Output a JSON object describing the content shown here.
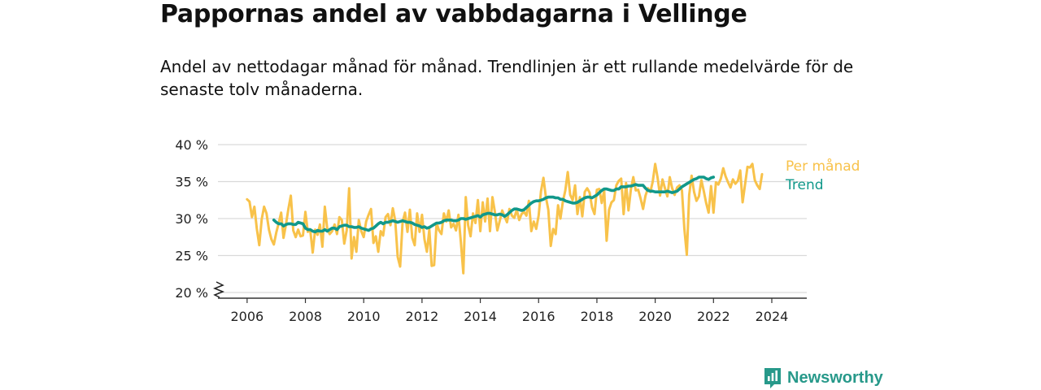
{
  "title": "Pappornas andel av vabbdagarna i Vellinge",
  "subtitle": "Andel av nettodagar månad för månad. Trendlinjen är ett rullande medelvärde för de senaste tolv månaderna.",
  "brand": {
    "name": "Newsworthy",
    "color": "#27998a",
    "icon": "newsworthy-logo-icon"
  },
  "chart_data": {
    "type": "line",
    "title": "Pappornas andel av vabbdagarna i Vellinge",
    "ylabel": "",
    "xlabel": "",
    "ylim": [
      20,
      40
    ],
    "xlim": [
      2005.0,
      2025.2
    ],
    "y_ticks": [
      20,
      25,
      30,
      35,
      40
    ],
    "y_tick_labels": [
      "20 %",
      "25 %",
      "30 %",
      "35 %",
      "40 %"
    ],
    "x_ticks": [
      2006,
      2008,
      2010,
      2012,
      2014,
      2016,
      2018,
      2020,
      2022,
      2024
    ],
    "x_tick_labels": [
      "2006",
      "2008",
      "2010",
      "2012",
      "2014",
      "2016",
      "2018",
      "2020",
      "2022",
      "2024"
    ],
    "axis_break": true,
    "grid": true,
    "legend": "direct labels right",
    "series": [
      {
        "name": "Per månad",
        "color": "#f8c24a",
        "start": 2006.0,
        "step_months": 1,
        "values": [
          32.6,
          32.3,
          30.2,
          31.6,
          28.6,
          26.4,
          29.9,
          31.6,
          30.7,
          28.5,
          27.2,
          26.5,
          28.1,
          29.4,
          30.8,
          27.4,
          29.2,
          31.3,
          33.1,
          28.4,
          27.5,
          28.5,
          27.6,
          27.7,
          30.9,
          28.2,
          28.4,
          25.4,
          28.5,
          27.8,
          29.2,
          26.2,
          31.6,
          28.6,
          27.9,
          28.3,
          29.2,
          27.9,
          30.2,
          29.8,
          26.6,
          28.4,
          34.1,
          24.6,
          27.5,
          25.5,
          29.8,
          28.3,
          27.5,
          29.6,
          30.5,
          31.3,
          26.7,
          27.6,
          25.5,
          28.3,
          27.7,
          30.2,
          30.6,
          29.1,
          31.4,
          29.7,
          24.8,
          23.5,
          29.5,
          30.8,
          28.2,
          31.2,
          27.4,
          26.4,
          30.7,
          28.2,
          30.5,
          27.2,
          25.5,
          28.5,
          23.6,
          23.7,
          29.4,
          28.4,
          27.9,
          30.7,
          29.6,
          31.1,
          28.8,
          29.3,
          28.4,
          30.5,
          26.8,
          22.6,
          32.9,
          29.1,
          27.6,
          30.7,
          29.4,
          32.5,
          28.3,
          32.2,
          29.6,
          32.7,
          28.3,
          32.9,
          30.9,
          28.4,
          29.7,
          31.1,
          30.3,
          29.5,
          31.3,
          30.4,
          30.1,
          31.2,
          29.8,
          30.6,
          30.9,
          30.4,
          32.4,
          28.3,
          29.6,
          28.6,
          30.4,
          33.7,
          35.5,
          32.9,
          31.2,
          26.3,
          28.6,
          27.9,
          31.8,
          30.0,
          32.3,
          33.8,
          36.3,
          33.2,
          32.5,
          34.5,
          30.6,
          32.9,
          30.3,
          33.6,
          34.1,
          33.5,
          31.5,
          30.6,
          33.9,
          34.0,
          32.1,
          33.8,
          27.0,
          31.2,
          32.2,
          32.5,
          34.5,
          35.1,
          35.4,
          30.6,
          34.8,
          31.1,
          34.0,
          35.6,
          33.8,
          33.9,
          32.7,
          31.3,
          33.1,
          34.1,
          33.6,
          35.0,
          37.4,
          35.5,
          33.1,
          35.3,
          34.1,
          33.0,
          35.6,
          34.1,
          33.2,
          34.2,
          34.5,
          33.8,
          28.6,
          25.1,
          33.2,
          35.8,
          33.6,
          32.4,
          33.0,
          35.2,
          33.7,
          32.1,
          30.8,
          34.4,
          30.8,
          34.9,
          34.6,
          35.4,
          36.8,
          35.7,
          34.9,
          34.2,
          35.3,
          34.7,
          35.1,
          36.5,
          32.2,
          34.6,
          37.0,
          36.9,
          37.4,
          35.2,
          34.5,
          34.0,
          36.0
        ]
      },
      {
        "name": "Trend",
        "color": "#11988a",
        "start": 2006.917,
        "step_months": 1,
        "values": [
          29.8,
          29.5,
          29.3,
          29.3,
          29.0,
          29.2,
          29.3,
          29.3,
          29.2,
          29.2,
          29.5,
          29.4,
          29.3,
          28.7,
          28.5,
          28.5,
          28.3,
          28.2,
          28.4,
          28.3,
          28.3,
          28.5,
          28.3,
          28.5,
          28.7,
          28.7,
          28.5,
          28.9,
          29.0,
          29.1,
          29.1,
          28.9,
          28.9,
          28.8,
          28.8,
          28.9,
          28.7,
          28.6,
          28.5,
          28.4,
          28.6,
          28.7,
          29.0,
          29.3,
          29.5,
          29.3,
          29.5,
          29.5,
          29.6,
          29.7,
          29.6,
          29.5,
          29.6,
          29.7,
          29.6,
          29.5,
          29.5,
          29.4,
          29.2,
          29.1,
          29.0,
          28.8,
          28.9,
          28.7,
          28.8,
          29.0,
          29.2,
          29.4,
          29.4,
          29.5,
          29.7,
          29.8,
          29.8,
          29.8,
          29.7,
          29.7,
          29.8,
          30.0,
          30.0,
          29.9,
          30.0,
          30.1,
          30.2,
          30.3,
          30.4,
          30.2,
          30.5,
          30.6,
          30.7,
          30.7,
          30.6,
          30.5,
          30.5,
          30.6,
          30.5,
          30.3,
          30.5,
          30.8,
          31.1,
          31.3,
          31.3,
          31.2,
          31.1,
          31.2,
          31.5,
          31.8,
          32.1,
          32.3,
          32.4,
          32.4,
          32.5,
          32.6,
          32.8,
          32.9,
          32.9,
          32.9,
          32.8,
          32.8,
          32.6,
          32.6,
          32.4,
          32.3,
          32.2,
          32.1,
          32.1,
          32.2,
          32.4,
          32.6,
          32.8,
          32.9,
          32.9,
          32.8,
          33.0,
          33.2,
          33.5,
          33.8,
          34.0,
          34.0,
          33.9,
          33.8,
          33.8,
          34.0,
          34.0,
          34.3,
          34.3,
          34.3,
          34.4,
          34.4,
          34.5,
          34.6,
          34.5,
          34.5,
          34.5,
          34.1,
          33.8,
          33.7,
          33.7,
          33.6,
          33.6,
          33.6,
          33.6,
          33.6,
          33.7,
          33.6,
          33.5,
          33.6,
          33.7,
          34.0,
          34.3,
          34.5,
          34.7,
          34.9,
          35.1,
          35.3,
          35.4,
          35.6,
          35.6,
          35.6,
          35.4,
          35.3,
          35.5,
          35.6
        ]
      }
    ]
  }
}
